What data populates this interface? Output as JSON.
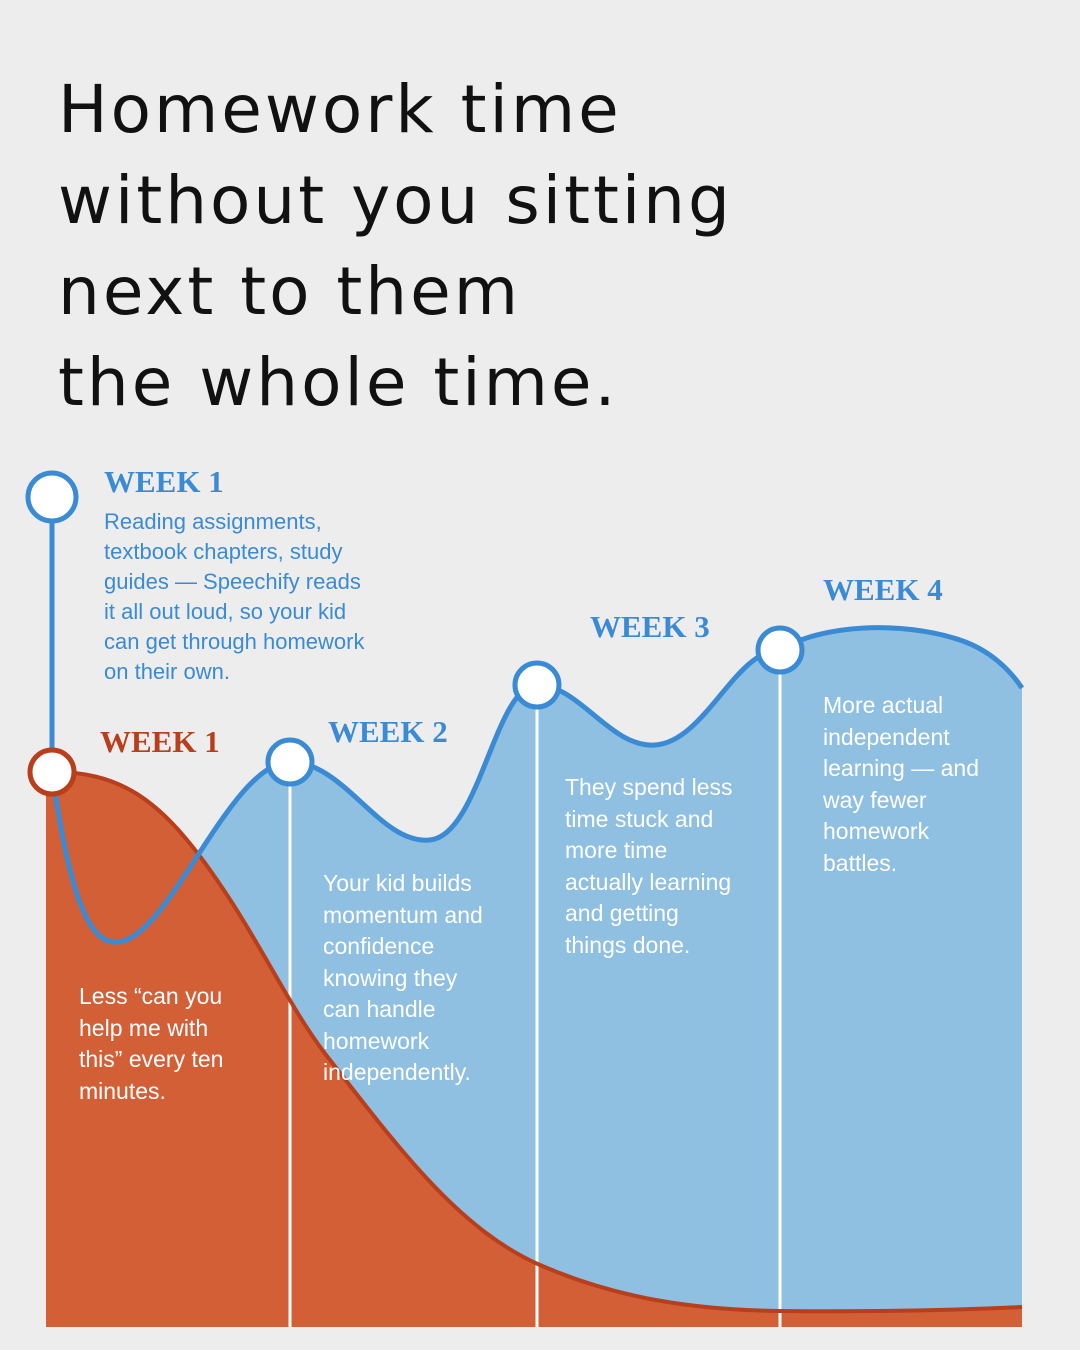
{
  "header": {
    "title_lines": [
      "Homework time",
      "without you sitting",
      "next to them",
      "the whole time."
    ]
  },
  "steps": [
    {
      "label": "WEEK 1",
      "lines": [
        "Reading assignments,",
        "textbook chapters, study",
        "guides — Speechify reads",
        "it all out loud, so your kid",
        "can get through homework",
        "on their own."
      ]
    },
    {
      "label": "WEEK 1",
      "lines": [
        "Less “can you",
        "help me with",
        "this” every ten",
        "minutes."
      ]
    },
    {
      "label": "WEEK 2",
      "lines": [
        "Your kid builds",
        "momentum and",
        "confidence",
        "knowing they",
        "can handle",
        "homework",
        "independently."
      ]
    },
    {
      "label": "WEEK 3",
      "lines": [
        "They spend less",
        "time stuck and",
        "more time",
        "actually learning",
        "and getting",
        "things done."
      ]
    },
    {
      "label": "WEEK 4",
      "lines": [
        "More actual",
        "independent",
        "learning — and",
        "way fewer",
        "homework",
        "battles."
      ]
    }
  ]
}
